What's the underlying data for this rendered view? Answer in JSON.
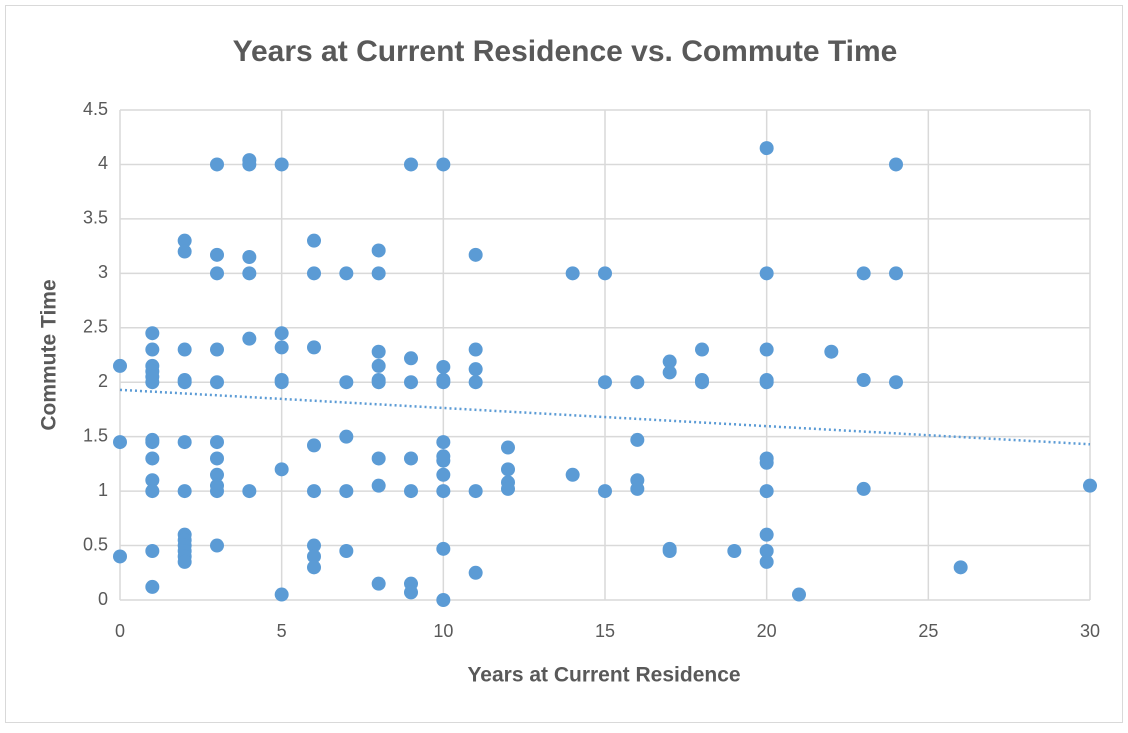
{
  "chart_data": {
    "type": "scatter",
    "title": "Years at Current Residence vs. Commute Time",
    "x_label": "Years at Current Residence",
    "y_label": "Commute Time",
    "xlim": [
      0,
      30
    ],
    "xticks": [
      0,
      5,
      10,
      15,
      20,
      25,
      30
    ],
    "ylim": [
      0,
      4.5
    ],
    "yticks": [
      0,
      0.5,
      1,
      1.5,
      2,
      2.5,
      3,
      3.5,
      4,
      4.5
    ],
    "grid": true,
    "series": [
      {
        "name": "Commute Time",
        "color": "#5b9bd5",
        "x": [
          0,
          0,
          0,
          1,
          1,
          1,
          1,
          1,
          1,
          1,
          1,
          1,
          1,
          1,
          1,
          1,
          2,
          2,
          2,
          2,
          2,
          2,
          2,
          2,
          2,
          2,
          2,
          2,
          2,
          3,
          3,
          3,
          3,
          3,
          3,
          3,
          3,
          3,
          3,
          3,
          4,
          4,
          4,
          4,
          4,
          4,
          5,
          5,
          5,
          5,
          5,
          5,
          5,
          6,
          6,
          6,
          6,
          6,
          6,
          6,
          6,
          7,
          7,
          7,
          7,
          7,
          8,
          8,
          8,
          8,
          8,
          8,
          8,
          8,
          8,
          9,
          9,
          9,
          9,
          9,
          9,
          9,
          10,
          10,
          10,
          10,
          10,
          10,
          10,
          10,
          10,
          10,
          10,
          11,
          11,
          11,
          11,
          11,
          11,
          12,
          12,
          12,
          12,
          14,
          14,
          15,
          15,
          15,
          16,
          16,
          16,
          16,
          17,
          17,
          17,
          17,
          18,
          18,
          18,
          19,
          20,
          20,
          20,
          20,
          20,
          20,
          20,
          20,
          20,
          20,
          20,
          21,
          22,
          23,
          23,
          23,
          24,
          24,
          24,
          26,
          30
        ],
        "values": [
          2.15,
          1.45,
          0.4,
          2.45,
          2.3,
          2.15,
          2.1,
          2.0,
          2.05,
          1.47,
          1.45,
          1.3,
          1.1,
          1.0,
          0.45,
          0.12,
          3.3,
          3.2,
          2.3,
          2.0,
          2.02,
          1.45,
          1.0,
          0.6,
          0.55,
          0.5,
          0.45,
          0.4,
          0.35,
          4.0,
          3.17,
          3.0,
          2.3,
          2.0,
          1.45,
          1.3,
          1.15,
          1.05,
          1.0,
          0.5,
          4.04,
          4.0,
          3.15,
          3.0,
          2.4,
          1.0,
          4.0,
          2.45,
          2.32,
          2.02,
          2.0,
          1.2,
          0.05,
          3.3,
          3.0,
          2.32,
          1.42,
          1.0,
          0.5,
          0.4,
          0.3,
          3.0,
          2.0,
          1.5,
          1.0,
          0.45,
          3.21,
          3.0,
          2.28,
          2.15,
          2.02,
          2.0,
          1.3,
          1.05,
          0.15,
          4.0,
          2.22,
          2.0,
          1.3,
          1.0,
          0.15,
          0.07,
          4.0,
          2.14,
          2.02,
          2.0,
          1.45,
          1.32,
          1.28,
          1.15,
          1.0,
          0.47,
          0.0,
          3.17,
          2.3,
          2.12,
          2.0,
          1.0,
          0.25,
          1.4,
          1.2,
          1.08,
          1.02,
          3.0,
          1.15,
          3.0,
          2.0,
          1.0,
          2.0,
          1.47,
          1.1,
          1.02,
          2.19,
          2.09,
          0.47,
          0.45,
          2.3,
          2.02,
          2.0,
          0.45,
          4.15,
          3.0,
          2.3,
          2.02,
          2.0,
          1.3,
          1.26,
          1.0,
          0.6,
          0.45,
          0.35,
          0.05,
          2.28,
          3.0,
          2.02,
          1.02,
          4.0,
          3.0,
          2.0,
          0.3,
          1.05
        ]
      }
    ],
    "trendline": {
      "x": [
        0,
        30
      ],
      "values": [
        1.93,
        1.43
      ]
    }
  }
}
